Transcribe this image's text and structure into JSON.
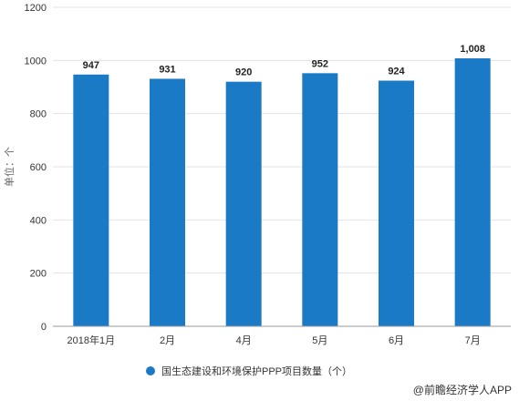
{
  "chart_data": {
    "type": "bar",
    "categories": [
      "2018年1月",
      "2月",
      "4月",
      "5月",
      "6月",
      "7月"
    ],
    "series": [
      {
        "name": "国生态建设和环境保护PPP项目数量（个）",
        "values": [
          947,
          931,
          920,
          952,
          924,
          1008
        ],
        "data_labels": [
          "947",
          "931",
          "920",
          "952",
          "924",
          "1,008"
        ]
      }
    ],
    "ylabel": "单位：个",
    "ylim": [
      0,
      1200
    ],
    "yticks": [
      0,
      200,
      400,
      600,
      800,
      1000,
      1200
    ],
    "grid": true,
    "legend_position": "bottom",
    "colors": {
      "bar": "#1a7ac6",
      "grid": "#e3e3e3",
      "axis": "#999999"
    }
  },
  "credit": "@前瞻经济学人APP"
}
